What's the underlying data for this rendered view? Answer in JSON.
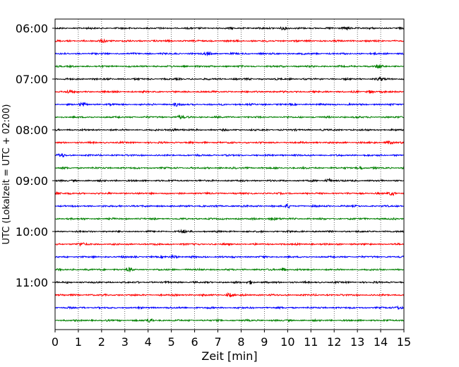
{
  "chart_data": {
    "type": "line",
    "title": "",
    "xlabel": "Zeit  [min]",
    "ylabel": "UTC (Lokalzeit = UTC + 02:00)",
    "xlim": [
      0,
      15
    ],
    "x_ticks": [
      "0",
      "1",
      "2",
      "3",
      "4",
      "5",
      "6",
      "7",
      "8",
      "9",
      "10",
      "11",
      "12",
      "13",
      "14",
      "15"
    ],
    "y_ticks": [
      "06:00",
      "07:00",
      "08:00",
      "09:00",
      "10:00",
      "11:00"
    ],
    "grid": "vertical dotted lines at every minute",
    "trace_interval_min": 15,
    "trace_start": "06:00",
    "trace_count": 24,
    "trace_colors": [
      "#000000",
      "#ff0000",
      "#0000ff",
      "#008000"
    ],
    "series": [
      {
        "start": "06:00",
        "color": "#000000",
        "peak_at_min": [
          12.6,
          9.8
        ]
      },
      {
        "start": "06:15",
        "color": "#ff0000",
        "peak_at_min": [
          2.1
        ]
      },
      {
        "start": "06:30",
        "color": "#0000ff",
        "peak_at_min": [
          6.6
        ]
      },
      {
        "start": "06:45",
        "color": "#008000",
        "peak_at_min": [
          13.9
        ]
      },
      {
        "start": "07:00",
        "color": "#000000",
        "peak_at_min": [
          14.0
        ]
      },
      {
        "start": "07:15",
        "color": "#ff0000",
        "peak_at_min": [
          0.6,
          13.6
        ]
      },
      {
        "start": "07:30",
        "color": "#0000ff",
        "peak_at_min": [
          1.2,
          5.2
        ]
      },
      {
        "start": "07:45",
        "color": "#008000",
        "peak_at_min": [
          5.4
        ]
      },
      {
        "start": "08:00",
        "color": "#000000",
        "peak_at_min": [
          5.1
        ]
      },
      {
        "start": "08:15",
        "color": "#ff0000",
        "peak_at_min": [
          14.4
        ]
      },
      {
        "start": "08:30",
        "color": "#0000ff",
        "peak_at_min": [
          0.3
        ]
      },
      {
        "start": "08:45",
        "color": "#008000",
        "peak_at_min": [
          13.1
        ]
      },
      {
        "start": "09:00",
        "color": "#000000",
        "peak_at_min": [
          11.8
        ]
      },
      {
        "start": "09:15",
        "color": "#ff0000",
        "peak_at_min": [
          0.1,
          14.5
        ]
      },
      {
        "start": "09:30",
        "color": "#0000ff",
        "peak_at_min": [
          10.0
        ]
      },
      {
        "start": "09:45",
        "color": "#008000",
        "peak_at_min": [
          9.4
        ]
      },
      {
        "start": "10:00",
        "color": "#000000",
        "peak_at_min": [
          5.5
        ]
      },
      {
        "start": "10:15",
        "color": "#ff0000",
        "peak_at_min": [
          1.1
        ]
      },
      {
        "start": "10:30",
        "color": "#0000ff",
        "peak_at_min": [
          5.1
        ]
      },
      {
        "start": "10:45",
        "color": "#008000",
        "peak_at_min": [
          3.2,
          9.8
        ]
      },
      {
        "start": "11:00",
        "color": "#000000",
        "peak_at_min": [
          8.4
        ]
      },
      {
        "start": "11:15",
        "color": "#ff0000",
        "peak_at_min": [
          7.5
        ]
      },
      {
        "start": "11:30",
        "color": "#0000ff",
        "peak_at_min": [
          14.8
        ]
      },
      {
        "start": "11:45",
        "color": "#008000",
        "peak_at_min": [
          4.1
        ]
      }
    ]
  }
}
